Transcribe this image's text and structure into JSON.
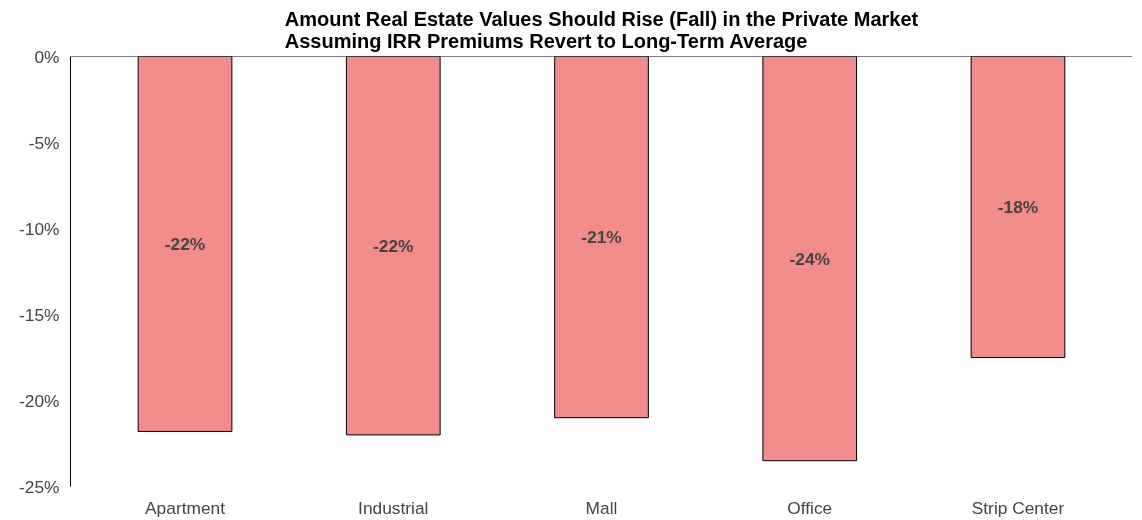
{
  "chart_data": {
    "type": "bar",
    "title": "Amount Real Estate Values Should Rise (Fall) in the Private Market\nAssuming IRR Premiums Revert to Long-Term Average",
    "categories": [
      "Apartment",
      "Industrial",
      "Mall",
      "Office",
      "Strip Center"
    ],
    "values": [
      -21.8,
      -22.0,
      -21.0,
      -23.5,
      -17.5
    ],
    "value_labels": [
      "-22%",
      "-22%",
      "-21%",
      "-24%",
      "-18%"
    ],
    "color": "#f28b8b",
    "ylim": [
      -25,
      0
    ],
    "yticks": [
      {
        "value": 0,
        "label": "0%"
      },
      {
        "value": -5,
        "label": "-5%"
      },
      {
        "value": -10,
        "label": "-10%"
      },
      {
        "value": -15,
        "label": "-15%"
      },
      {
        "value": -20,
        "label": "-20%"
      },
      {
        "value": -25,
        "label": "-25%"
      }
    ],
    "grid": false
  }
}
